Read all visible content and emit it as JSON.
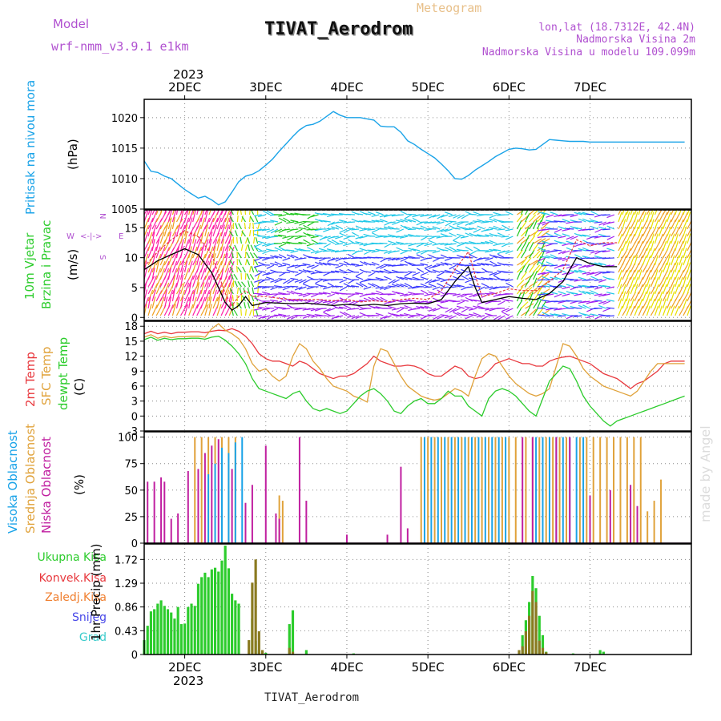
{
  "header": {
    "left_top": "Model",
    "left_bottom": "wrf-nmm_v3.9.1  e1km",
    "subtitle": "Meteogram",
    "title": "TIVAT_Aerodrom",
    "right_1": "lon,lat (18.7312E, 42.4N)",
    "right_2": "Nadmorska Visina 2m",
    "right_3": "Nadmorska Visina u modelu 109.099m"
  },
  "footer": {
    "station": "TIVAT_Aerodrom",
    "credit": "made by Angel"
  },
  "time_axis": {
    "year": "2023",
    "day_labels": [
      "2DEC",
      "3DEC",
      "4DEC",
      "5DEC",
      "6DEC",
      "7DEC"
    ],
    "start_hour": 0,
    "end_hour": 144
  },
  "panel_labels": {
    "pressure": [
      "Pritisak na nivou mora",
      "(hPa)"
    ],
    "wind": [
      "10m Vjetar",
      "Brzina i Pravac",
      "(m/s)"
    ],
    "compass": [
      "N",
      "W",
      "E",
      "S"
    ],
    "temp": [
      "2m Temp",
      "SFC Temp",
      "dewpt Temp",
      "(C)"
    ],
    "cloud": [
      "Visoka Oblacnost",
      "Srednja Oblacnost",
      "Niska Oblacnost",
      "(%)"
    ],
    "precip_unit": "1hr Precip (mm)",
    "precip_legend": [
      "Ukupna Kisa",
      "Konvek.Kisa",
      "Zaledj.Kisa",
      "Snijeg",
      "Grad"
    ]
  },
  "colors": {
    "pressure": "#1aa3e8",
    "wind_speed": "#000000",
    "wind_gust": "#e8383d",
    "t2m": "#e8383d",
    "tsfc": "#e0a23a",
    "tdew": "#2ccc2c",
    "cloud_high": "#1aa3e8",
    "cloud_mid": "#e0a23a",
    "cloud_low": "#c01fa0",
    "rain_total": "#2ccc2c",
    "rain_conv": "#e8383d",
    "rain_frz": "#f07f2f",
    "snow": "#4848e8",
    "hail": "#3ccccc"
  },
  "chart_data": [
    {
      "type": "line",
      "name": "pressure",
      "ylabel": "(hPa)",
      "ylim": [
        1005,
        1023
      ],
      "yticks": [
        1005,
        1010,
        1015,
        1020
      ],
      "x": [
        -12,
        -10,
        -8,
        -6,
        -4,
        -2,
        0,
        2,
        4,
        6,
        8,
        10,
        12,
        14,
        16,
        18,
        20,
        22,
        24,
        26,
        28,
        30,
        32,
        34,
        36,
        38,
        40,
        42,
        44,
        46,
        48,
        50,
        52,
        54,
        56,
        58,
        60,
        62,
        64,
        66,
        68,
        70,
        72,
        74,
        76,
        78,
        80,
        82,
        84,
        86,
        88,
        90,
        92,
        94,
        96,
        98,
        100,
        102,
        104,
        106,
        108,
        110,
        112,
        114,
        116,
        118,
        120,
        122,
        124,
        126,
        128,
        130,
        132,
        134,
        136,
        138,
        140,
        142,
        144,
        146,
        148
      ],
      "values": [
        1012.9,
        1011.2,
        1011.0,
        1010.4,
        1010.0,
        1009.1,
        1008.2,
        1007.5,
        1006.8,
        1007.1,
        1006.5,
        1005.7,
        1006.2,
        1007.8,
        1009.5,
        1010.4,
        1010.7,
        1011.3,
        1012.2,
        1013.2,
        1014.5,
        1015.7,
        1016.9,
        1018.0,
        1018.7,
        1018.9,
        1019.4,
        1020.2,
        1021.0,
        1020.4,
        1020.0,
        1020.0,
        1020.0,
        1019.8,
        1019.6,
        1018.6,
        1018.5,
        1018.5,
        1017.6,
        1016.2,
        1015.6,
        1014.8,
        1014.1,
        1013.4,
        1012.4,
        1011.3,
        1010.0,
        1009.9,
        1010.5,
        1011.4,
        1012.1,
        1012.8,
        1013.6,
        1014.2,
        1014.8,
        1015.0,
        1014.9,
        1014.7,
        1014.8,
        1015.6,
        1016.4,
        1016.3,
        1016.2,
        1016.1,
        1016.1,
        1016.1,
        1016.0,
        1016.0,
        1016.0,
        1016.0,
        1016.0,
        1016.0,
        1016.0,
        1016.0,
        1016.0,
        1016.0,
        1016.0,
        1016.0,
        1016.0,
        1016.0,
        1016.0
      ]
    },
    {
      "type": "line",
      "name": "wind",
      "ylabel": "(m/s)",
      "ylim": [
        -0.5,
        18
      ],
      "yticks": [
        0,
        5,
        10,
        15
      ],
      "x": [
        -12,
        -8,
        -4,
        0,
        4,
        8,
        12,
        14,
        16,
        18,
        20,
        24,
        28,
        32,
        36,
        40,
        44,
        48,
        52,
        56,
        60,
        64,
        68,
        72,
        76,
        80,
        84,
        86,
        88,
        92,
        96,
        100,
        104,
        108,
        112,
        116,
        120,
        124,
        128
      ],
      "series": [
        {
          "name": "speed",
          "values": [
            8.0,
            9.5,
            10.5,
            11.5,
            10.5,
            7.5,
            2.5,
            1.2,
            2.0,
            3.5,
            2.0,
            2.5,
            2.4,
            2.3,
            2.4,
            2.2,
            2.0,
            2.2,
            2.0,
            2.2,
            2.0,
            2.3,
            2.4,
            2.3,
            3.0,
            6.0,
            8.5,
            5.0,
            2.5,
            3.0,
            3.5,
            3.2,
            3.0,
            4.0,
            6.0,
            10.0,
            9.0,
            8.5,
            8.5
          ]
        },
        {
          "name": "gust",
          "values": [
            8.5,
            11.0,
            13.0,
            14.5,
            13.5,
            10.5,
            4.0,
            2.0,
            3.5,
            4.5,
            3.5,
            3.5,
            3.2,
            3.0,
            3.0,
            3.0,
            2.8,
            3.0,
            2.6,
            2.8,
            2.6,
            3.0,
            3.2,
            3.0,
            4.5,
            8.0,
            11.0,
            7.0,
            3.5,
            4.0,
            4.8,
            4.5,
            4.5,
            6.0,
            8.0,
            13.0,
            12.0,
            12.5,
            12.5
          ]
        }
      ],
      "arrow_palette": [
        "#ff1fa5",
        "#f0a020",
        "#e8e000",
        "#20c820",
        "#20c8e8",
        "#3a3aff",
        "#a020f0",
        "#e00090"
      ]
    },
    {
      "type": "line",
      "name": "temperature",
      "ylabel": "(C)",
      "ylim": [
        -3,
        19
      ],
      "yticks": [
        -3,
        0,
        3,
        6,
        9,
        12,
        15,
        18
      ],
      "x": [
        -12,
        -10,
        -8,
        -6,
        -4,
        -2,
        0,
        2,
        4,
        6,
        8,
        10,
        12,
        14,
        16,
        18,
        20,
        22,
        24,
        26,
        28,
        30,
        32,
        34,
        36,
        38,
        40,
        42,
        44,
        46,
        48,
        50,
        52,
        54,
        56,
        58,
        60,
        62,
        64,
        66,
        68,
        70,
        72,
        74,
        76,
        78,
        80,
        82,
        84,
        86,
        88,
        90,
        92,
        94,
        96,
        98,
        100,
        102,
        104,
        106,
        108,
        110,
        112,
        114,
        116,
        118,
        120,
        122,
        124,
        126,
        128,
        130,
        132,
        134,
        136,
        138,
        140,
        142,
        144,
        146,
        148
      ],
      "series": [
        {
          "name": "2m",
          "values": [
            16.5,
            17.0,
            16.5,
            16.8,
            16.5,
            16.8,
            16.8,
            16.9,
            16.9,
            16.7,
            17.0,
            17.2,
            17.1,
            17.5,
            17.0,
            16.0,
            14.5,
            12.5,
            11.5,
            11.0,
            11.0,
            10.5,
            10.0,
            11.0,
            10.5,
            9.5,
            8.5,
            8.0,
            7.5,
            8.0,
            8.0,
            8.5,
            9.5,
            10.5,
            12.0,
            11.0,
            10.5,
            10.0,
            10.0,
            10.2,
            10.0,
            9.5,
            8.5,
            8.0,
            8.0,
            9.0,
            10.0,
            9.5,
            8.0,
            7.5,
            7.8,
            9.0,
            10.5,
            11.0,
            11.5,
            11.0,
            10.5,
            10.5,
            10.0,
            10.0,
            11.0,
            11.5,
            11.8,
            12.0,
            11.5,
            11.0,
            10.5,
            9.5,
            8.5,
            8.0,
            7.5,
            6.5,
            5.5,
            6.5,
            7.0,
            8.0,
            9.0,
            10.5,
            11.0,
            11.0,
            11.0
          ]
        },
        {
          "name": "SFC",
          "values": [
            15.8,
            16.3,
            15.6,
            16.0,
            15.7,
            15.9,
            15.9,
            16.0,
            16.0,
            15.8,
            17.5,
            18.5,
            17.2,
            16.5,
            15.5,
            13.5,
            10.5,
            9.0,
            9.5,
            8.0,
            7.0,
            8.0,
            12.0,
            14.5,
            13.5,
            11.0,
            9.5,
            7.5,
            6.0,
            5.5,
            5.0,
            4.0,
            3.5,
            2.8,
            10.0,
            13.5,
            13.0,
            10.5,
            8.0,
            6.0,
            5.0,
            4.0,
            3.5,
            3.2,
            3.5,
            4.5,
            5.5,
            5.0,
            4.0,
            8.0,
            11.5,
            12.5,
            12.0,
            10.0,
            8.0,
            6.5,
            5.5,
            4.5,
            4.0,
            4.5,
            5.5,
            10.0,
            14.5,
            14.0,
            12.0,
            9.5,
            8.0,
            7.0,
            6.0,
            5.5,
            5.0,
            4.5,
            4.0,
            5.0,
            7.0,
            9.0,
            10.5,
            10.5,
            10.5,
            10.5,
            10.5
          ]
        },
        {
          "name": "dewpt",
          "values": [
            15.3,
            15.8,
            15.2,
            15.6,
            15.3,
            15.5,
            15.5,
            15.6,
            15.6,
            15.4,
            15.8,
            16.0,
            15.2,
            14.0,
            12.5,
            10.5,
            7.5,
            5.5,
            5.0,
            4.5,
            4.0,
            3.5,
            4.5,
            5.0,
            3.0,
            1.5,
            1.0,
            1.5,
            1.0,
            0.5,
            1.0,
            2.5,
            4.0,
            5.0,
            5.5,
            4.5,
            3.0,
            1.0,
            0.5,
            2.0,
            3.0,
            3.5,
            2.5,
            2.5,
            3.5,
            5.0,
            4.0,
            4.0,
            2.0,
            1.0,
            0.0,
            3.5,
            5.0,
            5.5,
            5.0,
            4.0,
            2.5,
            1.0,
            0.0,
            3.5,
            7.0,
            8.5,
            10.0,
            9.5,
            7.0,
            4.0,
            2.0,
            0.5,
            -1.0,
            -2.0,
            -1.0,
            -0.5,
            0.0,
            0.5,
            1.0,
            1.5,
            2.0,
            2.5,
            3.0,
            3.5,
            4.0
          ]
        }
      ]
    },
    {
      "type": "bar",
      "name": "cloud",
      "ylabel": "(%)",
      "ylim": [
        0,
        105
      ],
      "yticks": [
        0,
        25,
        50,
        75,
        100
      ],
      "series": [
        {
          "name": "low",
          "x": [
            -11,
            -9,
            -7,
            -6,
            -4,
            -2,
            1,
            4,
            6,
            8,
            10,
            14,
            18,
            20,
            24,
            27,
            28,
            34,
            36,
            48,
            60,
            64,
            66,
            100,
            103,
            110,
            114,
            120,
            126,
            132,
            134
          ],
          "values": [
            58,
            58,
            62,
            58,
            23,
            28,
            68,
            70,
            85,
            92,
            98,
            70,
            38,
            55,
            92,
            28,
            23,
            100,
            40,
            8,
            8,
            72,
            14,
            100,
            100,
            100,
            100,
            45,
            50,
            55,
            35
          ]
        },
        {
          "name": "mid",
          "x": [
            3,
            5,
            7,
            9,
            11,
            13,
            15,
            28,
            29,
            70,
            72,
            74,
            76,
            78,
            80,
            82,
            84,
            86,
            88,
            90,
            92,
            94,
            96,
            98,
            101,
            103,
            105,
            107,
            109,
            111,
            113,
            117,
            119,
            121,
            123,
            125,
            127,
            129,
            131,
            133,
            135,
            137,
            139,
            141
          ],
          "values": [
            100,
            100,
            100,
            100,
            100,
            100,
            100,
            45,
            40,
            100,
            100,
            100,
            100,
            100,
            100,
            100,
            100,
            100,
            100,
            100,
            100,
            100,
            100,
            100,
            100,
            100,
            100,
            100,
            100,
            100,
            100,
            100,
            100,
            100,
            100,
            100,
            100,
            100,
            100,
            100,
            100,
            30,
            40,
            60
          ]
        },
        {
          "name": "high",
          "x": [
            7,
            9,
            11,
            13,
            15,
            17,
            71,
            73,
            75,
            77,
            79,
            81,
            83,
            85,
            87,
            89,
            91,
            93,
            95,
            104,
            106,
            108,
            110,
            112,
            114,
            116,
            118
          ],
          "values": [
            65,
            75,
            90,
            85,
            95,
            100,
            100,
            100,
            100,
            100,
            100,
            100,
            100,
            100,
            100,
            100,
            100,
            100,
            100,
            100,
            100,
            100,
            100,
            100,
            100,
            100,
            100
          ]
        }
      ]
    },
    {
      "type": "bar",
      "name": "precip",
      "ylabel": "1hr Precip (mm)",
      "ylim": [
        0,
        2.0
      ],
      "yticks": [
        0,
        0.43,
        0.86,
        1.29,
        1.72
      ],
      "series": [
        {
          "name": "total",
          "x": [
            -12,
            -11,
            -10,
            -9,
            -8,
            -7,
            -6,
            -5,
            -4,
            -3,
            -2,
            -1,
            0,
            1,
            2,
            3,
            4,
            5,
            6,
            7,
            8,
            9,
            10,
            11,
            12,
            13,
            14,
            15,
            16,
            20,
            21,
            22,
            23,
            24,
            31,
            32,
            36,
            50,
            99,
            100,
            101,
            102,
            103,
            104,
            105,
            106,
            107,
            115,
            123,
            124
          ],
          "values": [
            0.26,
            0.52,
            0.78,
            0.82,
            0.92,
            0.98,
            0.88,
            0.82,
            0.76,
            0.65,
            0.86,
            0.55,
            0.56,
            0.86,
            0.92,
            0.88,
            1.28,
            1.4,
            1.48,
            1.4,
            1.54,
            1.57,
            1.5,
            1.7,
            1.97,
            1.56,
            1.1,
            0.98,
            0.92,
            0.65,
            0.25,
            0.08,
            0.05,
            0.03,
            0.55,
            0.8,
            0.08,
            0.02,
            0.02,
            0.35,
            0.62,
            0.95,
            1.42,
            1.2,
            0.7,
            0.35,
            0.05,
            0.02,
            0.08,
            0.05
          ]
        },
        {
          "name": "convective",
          "x": [
            19,
            20,
            21,
            22,
            23,
            31,
            32,
            99,
            100,
            101,
            102,
            103,
            104,
            105,
            106,
            107
          ],
          "values": [
            0.26,
            1.3,
            1.72,
            0.42,
            0.08,
            0.12,
            0.05,
            0.08,
            0.15,
            0.42,
            0.7,
            1.15,
            0.95,
            0.25,
            0.12,
            0.04
          ]
        }
      ]
    }
  ]
}
